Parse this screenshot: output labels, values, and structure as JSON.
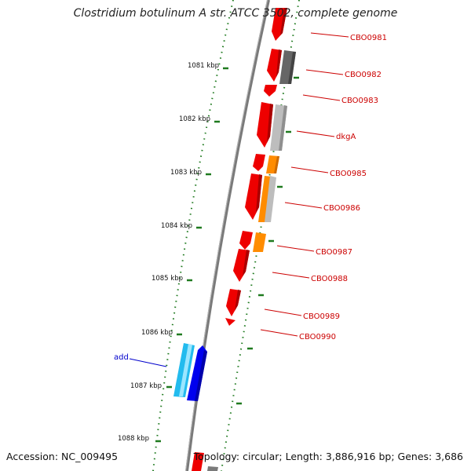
{
  "title": "Clostridium botulinum A str. ATCC 3502, complete genome",
  "accession": "Accession: NC_009495",
  "topology": "Topology: circular; Length: 3,886,916 bp; Genes: 3,686",
  "colors": {
    "backbone": "#7a7a7a",
    "tick": "#1f7a1f",
    "gene_red": "#ee0000",
    "gene_gray": "#666666",
    "gene_lightgray": "#bdbdbd",
    "gene_orange": "#ff8c00",
    "gene_cyan": "#22bbee",
    "gene_blue": "#0000ee",
    "label_red": "#cc0000",
    "label_blue": "#0000cc"
  },
  "ruler": {
    "tick_labels": [
      "1081 kbp",
      "1082 kbp",
      "1083 kbp",
      "1084 kbp",
      "1085 kbp",
      "1086 kbp",
      "1087 kbp",
      "1088 kbp"
    ]
  },
  "gene_labels": [
    {
      "text": "CBO0981",
      "color": "red"
    },
    {
      "text": "CBO0982",
      "color": "red"
    },
    {
      "text": "CBO0983",
      "color": "red"
    },
    {
      "text": "dkgA",
      "color": "red"
    },
    {
      "text": "CBO0985",
      "color": "red"
    },
    {
      "text": "CBO0986",
      "color": "red"
    },
    {
      "text": "CBO0987",
      "color": "red"
    },
    {
      "text": "CBO0988",
      "color": "red"
    },
    {
      "text": "CBO0989",
      "color": "red"
    },
    {
      "text": "CBO0990",
      "color": "red"
    },
    {
      "text": "add",
      "color": "blue"
    }
  ]
}
